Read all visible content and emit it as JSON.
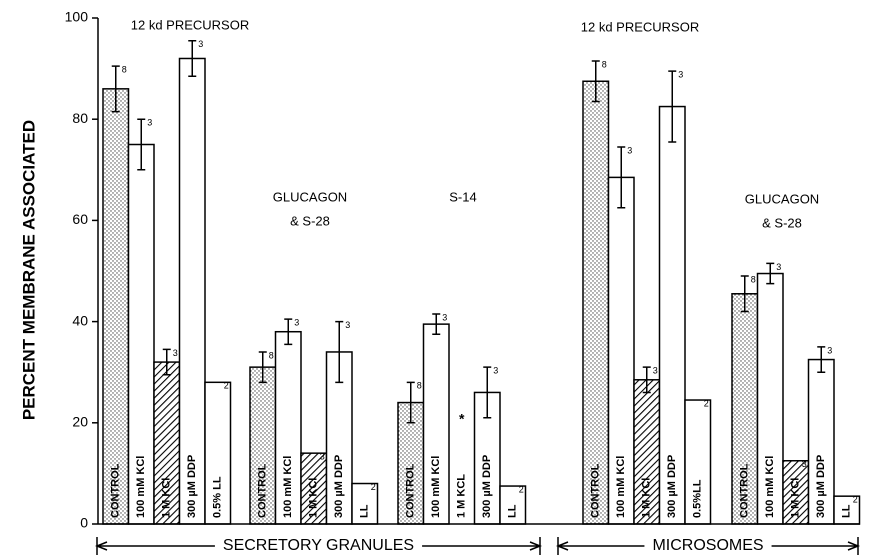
{
  "chart_data": {
    "type": "bar",
    "ylabel": "PERCENT MEMBRANE ASSOCIATED",
    "ylim": [
      0,
      100
    ],
    "yticks": [
      0,
      20,
      40,
      60,
      80,
      100
    ],
    "groups": [
      {
        "annotation": [
          "12 kd PRECURSOR"
        ],
        "categories": [
          "CONTROL",
          "100 mM KCl",
          "1 M KCl",
          "300 µM DDP",
          "0.5% LL"
        ],
        "values": [
          86,
          75,
          32,
          92,
          28
        ],
        "errors": [
          4.5,
          5,
          2.5,
          3.5,
          null
        ],
        "n": [
          8,
          3,
          3,
          3,
          2
        ],
        "patterns": [
          "dots",
          "white",
          "hatch",
          "white",
          "white"
        ]
      },
      {
        "annotation": [
          "GLUCAGON",
          "& S-28"
        ],
        "categories": [
          "CONTROL",
          "100 mM KCl",
          "1 M KCl",
          "300 µM DDP",
          "LL"
        ],
        "values": [
          31,
          38,
          14,
          34,
          8
        ],
        "errors": [
          3,
          2.5,
          null,
          6,
          null
        ],
        "n": [
          8,
          3,
          3,
          3,
          2
        ],
        "patterns": [
          "dots",
          "white",
          "hatch",
          "white",
          "white"
        ]
      },
      {
        "annotation": [
          "S-14"
        ],
        "categories": [
          "CONTROL",
          "100 mM KCl",
          "1 M KCL",
          "300 µM DDP",
          "LL"
        ],
        "values": [
          24,
          39.5,
          null,
          26,
          7.5
        ],
        "errors": [
          4,
          2,
          null,
          5,
          null
        ],
        "n": [
          8,
          3,
          null,
          3,
          2
        ],
        "notes": [
          null,
          null,
          "*",
          null,
          null
        ],
        "patterns": [
          "dots",
          "white",
          "hatch",
          "white",
          "white"
        ]
      },
      {
        "annotation": [
          "12 kd PRECURSOR"
        ],
        "categories": [
          "CONTROL",
          "100 mM KCl",
          "1 M KCl",
          "300 µM DDP",
          "0.5%LL"
        ],
        "values": [
          87.5,
          68.5,
          28.5,
          82.5,
          24.5
        ],
        "errors": [
          4,
          6,
          2.5,
          7,
          null
        ],
        "n": [
          8,
          3,
          3,
          3,
          2
        ],
        "patterns": [
          "dots",
          "white",
          "hatch",
          "white",
          "white"
        ]
      },
      {
        "annotation": [
          "GLUCAGON",
          "& S-28"
        ],
        "categories": [
          "CONTROL",
          "100 mM KCl",
          "1 M KCl",
          "300 µM DDP",
          "LL"
        ],
        "values": [
          45.5,
          49.5,
          12.5,
          32.5,
          5.5
        ],
        "errors": [
          3.5,
          2,
          null,
          2.5,
          null
        ],
        "n": [
          8,
          3,
          3,
          3,
          2
        ],
        "patterns": [
          "dots",
          "white",
          "hatch",
          "white",
          "white"
        ]
      }
    ],
    "sections": [
      "SECRETORY GRANULES",
      "MICROSOMES"
    ]
  }
}
